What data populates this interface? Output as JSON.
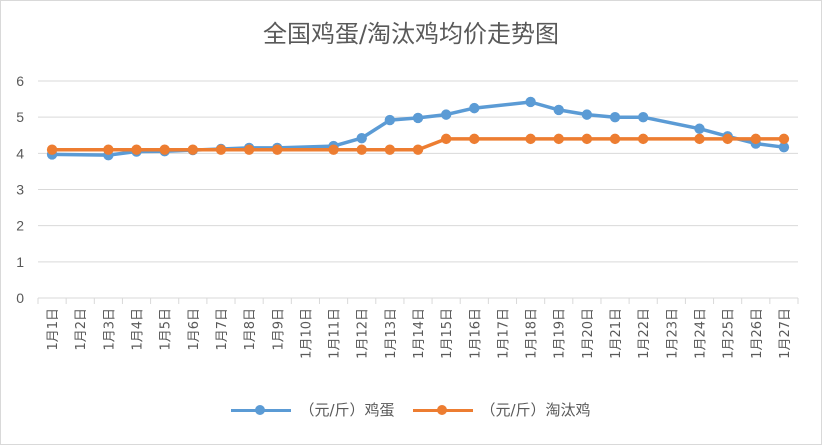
{
  "chart_data": {
    "type": "line",
    "title": "全国鸡蛋/淘汰鸡均价走势图",
    "categories": [
      "1月1日",
      "1月2日",
      "1月3日",
      "1月4日",
      "1月5日",
      "1月6日",
      "1月7日",
      "1月8日",
      "1月9日",
      "1月10日",
      "1月11日",
      "1月12日",
      "1月13日",
      "1月14日",
      "1月15日",
      "1月16日",
      "1月17日",
      "1月18日",
      "1月19日",
      "1月20日",
      "1月21日",
      "1月22日",
      "1月23日",
      "1月24日",
      "1月25日",
      "1月26日",
      "1月27日"
    ],
    "ylim": [
      0,
      6
    ],
    "yticks": [
      0,
      1,
      2,
      3,
      4,
      5,
      6
    ],
    "grid": true,
    "legend_position": "bottom",
    "series": [
      {
        "name": "（元/斤）鸡蛋",
        "color": "#5b9bd5",
        "values": [
          3.97,
          null,
          3.95,
          4.05,
          4.06,
          4.09,
          4.12,
          4.15,
          4.15,
          null,
          4.2,
          4.42,
          4.92,
          4.98,
          5.07,
          5.25,
          null,
          5.42,
          5.2,
          5.07,
          5.0,
          5.0,
          null,
          4.68,
          4.47,
          4.27,
          4.17
        ]
      },
      {
        "name": "（元/斤）淘汰鸡",
        "color": "#ed7d31",
        "values": [
          4.1,
          null,
          4.1,
          4.1,
          4.1,
          4.1,
          4.1,
          4.1,
          4.1,
          null,
          4.1,
          4.1,
          4.1,
          4.1,
          4.4,
          4.4,
          null,
          4.4,
          4.4,
          4.4,
          4.4,
          4.4,
          null,
          4.4,
          4.4,
          4.4,
          4.4
        ]
      }
    ]
  }
}
